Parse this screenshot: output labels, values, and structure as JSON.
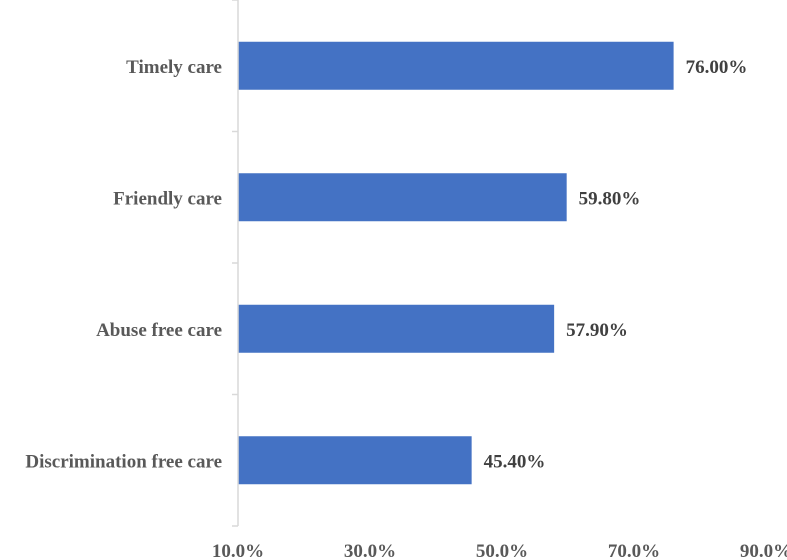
{
  "chart_data": {
    "type": "bar",
    "orientation": "horizontal",
    "categories": [
      "Timely care",
      "Friendly care",
      "Abuse free care",
      "Discrimination free care"
    ],
    "values": [
      76.0,
      59.8,
      57.9,
      45.4
    ],
    "value_labels": [
      "76.00%",
      "59.80%",
      "57.90%",
      "45.40%"
    ],
    "xlim": [
      10,
      90
    ],
    "x_ticks": [
      10,
      30,
      50,
      70,
      90
    ],
    "x_tick_labels": [
      "10.0%",
      "30.0%",
      "50.0%",
      "70.0%",
      "90.0%"
    ],
    "title": "",
    "xlabel": "",
    "ylabel": "",
    "grid": false,
    "legend": "none",
    "bar_color": "#4472C4"
  }
}
